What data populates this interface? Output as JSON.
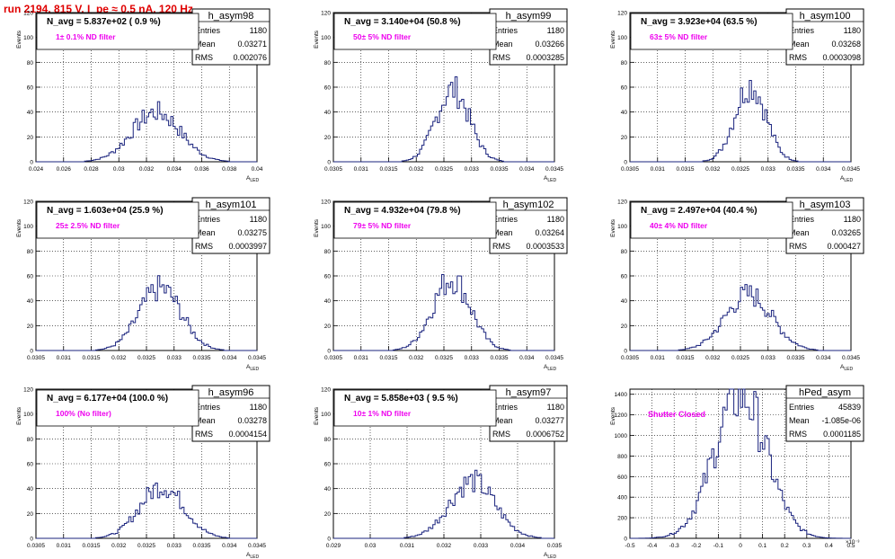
{
  "page_title": "run 2194,   815 V, I_pe ≈ 0.5 nA, 120 Hz",
  "colors": {
    "title": "#e00000",
    "histogram": "#1a237e",
    "annotation": "#ee00ee",
    "grid": "#000000"
  },
  "stats_labels": {
    "entries": "Entries",
    "mean": "Mean",
    "rms": "RMS"
  },
  "chart_data": [
    {
      "type": "bar",
      "name": "h_asym98",
      "ylabel": "Events",
      "xlabel": "A_LED",
      "xlim": [
        0.024,
        0.04
      ],
      "ylim": [
        0,
        120
      ],
      "grid": true,
      "xticks": [
        "0.024",
        "0.026",
        "0.028",
        "0.03",
        "0.032",
        "0.034",
        "0.036",
        "0.038",
        "0.04"
      ],
      "yticks": [
        "0",
        "20",
        "40",
        "60",
        "80",
        "100",
        "120"
      ],
      "navg": "N_avg = 5.837e+02 ( 0.9 %)",
      "filter": "1± 0.1% ND filter",
      "stats": {
        "entries": "1180",
        "mean": "0.03271",
        "rms": "0.002076"
      },
      "mean_value": 0.03271,
      "sigma": 0.00175,
      "peak": 40
    },
    {
      "type": "bar",
      "name": "h_asym99",
      "ylabel": "Events",
      "xlabel": "A_LED",
      "xlim": [
        0.0305,
        0.0345
      ],
      "ylim": [
        0,
        120
      ],
      "grid": true,
      "xticks": [
        "0.0305",
        "0.031",
        "0.0315",
        "0.032",
        "0.0325",
        "0.033",
        "0.0335",
        "0.034",
        "0.0345"
      ],
      "yticks": [
        "0",
        "20",
        "40",
        "60",
        "80",
        "100",
        "120"
      ],
      "navg": "N_avg = 3.140e+04 (50.8 %)",
      "filter": "50± 5% ND filter",
      "stats": {
        "entries": "1180",
        "mean": "0.03266",
        "rms": "0.0003285"
      },
      "mean_value": 0.03266,
      "sigma": 0.0003,
      "peak": 58
    },
    {
      "type": "bar",
      "name": "h_asym100",
      "ylabel": "Events",
      "xlabel": "A_LED",
      "xlim": [
        0.0305,
        0.0345
      ],
      "ylim": [
        0,
        120
      ],
      "grid": true,
      "xticks": [
        "0.0305",
        "0.031",
        "0.0315",
        "0.032",
        "0.0325",
        "0.033",
        "0.0335",
        "0.034",
        "0.0345"
      ],
      "yticks": [
        "0",
        "20",
        "40",
        "60",
        "80",
        "100",
        "120"
      ],
      "navg": "N_avg = 3.923e+04 (63.5 %)",
      "filter": "63± 5% ND filter",
      "stats": {
        "entries": "1180",
        "mean": "0.03268",
        "rms": "0.0003098"
      },
      "mean_value": 0.03268,
      "sigma": 0.00028,
      "peak": 62
    },
    {
      "type": "bar",
      "name": "h_asym101",
      "ylabel": "Events",
      "xlabel": "A_LED",
      "xlim": [
        0.0305,
        0.0345
      ],
      "ylim": [
        0,
        120
      ],
      "grid": true,
      "xticks": [
        "0.0305",
        "0.031",
        "0.0315",
        "0.032",
        "0.0325",
        "0.033",
        "0.0335",
        "0.034",
        "0.0345"
      ],
      "yticks": [
        "0",
        "20",
        "40",
        "60",
        "80",
        "100",
        "120"
      ],
      "navg": "N_avg = 1.603e+04 (25.9 %)",
      "filter": "25± 2.5% ND filter",
      "stats": {
        "entries": "1180",
        "mean": "0.03275",
        "rms": "0.0003997"
      },
      "mean_value": 0.03275,
      "sigma": 0.00038,
      "peak": 50
    },
    {
      "type": "bar",
      "name": "h_asym102",
      "ylabel": "Events",
      "xlabel": "A_LED",
      "xlim": [
        0.0305,
        0.0345
      ],
      "ylim": [
        0,
        120
      ],
      "grid": true,
      "xticks": [
        "0.0305",
        "0.031",
        "0.0315",
        "0.032",
        "0.0325",
        "0.033",
        "0.0335",
        "0.034",
        "0.0345"
      ],
      "yticks": [
        "0",
        "20",
        "40",
        "60",
        "80",
        "100",
        "120"
      ],
      "navg": "N_avg = 4.932e+04 (79.8 %)",
      "filter": "79± 5% ND filter",
      "stats": {
        "entries": "1180",
        "mean": "0.03264",
        "rms": "0.0003533"
      },
      "mean_value": 0.03264,
      "sigma": 0.00034,
      "peak": 58
    },
    {
      "type": "bar",
      "name": "h_asym103",
      "ylabel": "Events",
      "xlabel": "A_LED",
      "xlim": [
        0.0305,
        0.0345
      ],
      "ylim": [
        0,
        120
      ],
      "grid": true,
      "xticks": [
        "0.0305",
        "0.031",
        "0.0315",
        "0.032",
        "0.0325",
        "0.033",
        "0.0335",
        "0.034",
        "0.0345"
      ],
      "yticks": [
        "0",
        "20",
        "40",
        "60",
        "80",
        "100",
        "120"
      ],
      "navg": "N_avg = 2.497e+04 (40.4 %)",
      "filter": "40± 4% ND filter",
      "stats": {
        "entries": "1180",
        "mean": "0.03265",
        "rms": "0.000427"
      },
      "mean_value": 0.03265,
      "sigma": 0.00042,
      "peak": 45
    },
    {
      "type": "bar",
      "name": "h_asym96",
      "ylabel": "Events",
      "xlabel": "A_LED",
      "xlim": [
        0.0305,
        0.0345
      ],
      "ylim": [
        0,
        120
      ],
      "grid": true,
      "xticks": [
        "0.0305",
        "0.031",
        "0.0315",
        "0.032",
        "0.0325",
        "0.033",
        "0.0335",
        "0.034",
        "0.0345"
      ],
      "yticks": [
        "0",
        "20",
        "40",
        "60",
        "80",
        "100",
        "120"
      ],
      "navg": "N_avg = 6.177e+04 (100.0 %)",
      "filter": "100% (No filter)",
      "stats": {
        "entries": "1180",
        "mean": "0.03278",
        "rms": "0.0004154"
      },
      "mean_value": 0.03278,
      "sigma": 0.0004,
      "peak": 42
    },
    {
      "type": "bar",
      "name": "h_asym97",
      "ylabel": "Events",
      "xlabel": "A_LED",
      "xlim": [
        0.029,
        0.035
      ],
      "ylim": [
        0,
        120
      ],
      "grid": true,
      "xticks": [
        "0.029",
        "0.03",
        "0.031",
        "0.032",
        "0.033",
        "0.034",
        "0.035"
      ],
      "yticks": [
        "0",
        "20",
        "40",
        "60",
        "80",
        "100",
        "120"
      ],
      "navg": "N_avg = 5.858e+03 ( 9.5 %)",
      "filter": "10± 1% ND filter",
      "stats": {
        "entries": "1180",
        "mean": "0.03277",
        "rms": "0.0006752"
      },
      "mean_value": 0.03277,
      "sigma": 0.00062,
      "peak": 46
    },
    {
      "type": "bar",
      "name": "hPed_asym",
      "ylabel": "Events",
      "xlabel": "",
      "xlim": [
        -0.5,
        0.5
      ],
      "ylim": [
        0,
        1450
      ],
      "grid": true,
      "x_exponent": "×10⁻³",
      "xticks": [
        "-0.5",
        "-0.4",
        "-0.3",
        "-0.2",
        "-0.1",
        "0",
        "0.1",
        "0.2",
        "0.3",
        "0.4",
        "0.5"
      ],
      "yticks": [
        "0",
        "200",
        "400",
        "600",
        "800",
        "1000",
        "1200",
        "1400"
      ],
      "navg": "",
      "filter": "Shutter Closed",
      "stats": {
        "entries": "45839",
        "mean": "-1.085e-06",
        "rms": "0.0001185"
      },
      "mean_value": 0.0,
      "sigma": 0.118,
      "peak": 1400
    }
  ]
}
